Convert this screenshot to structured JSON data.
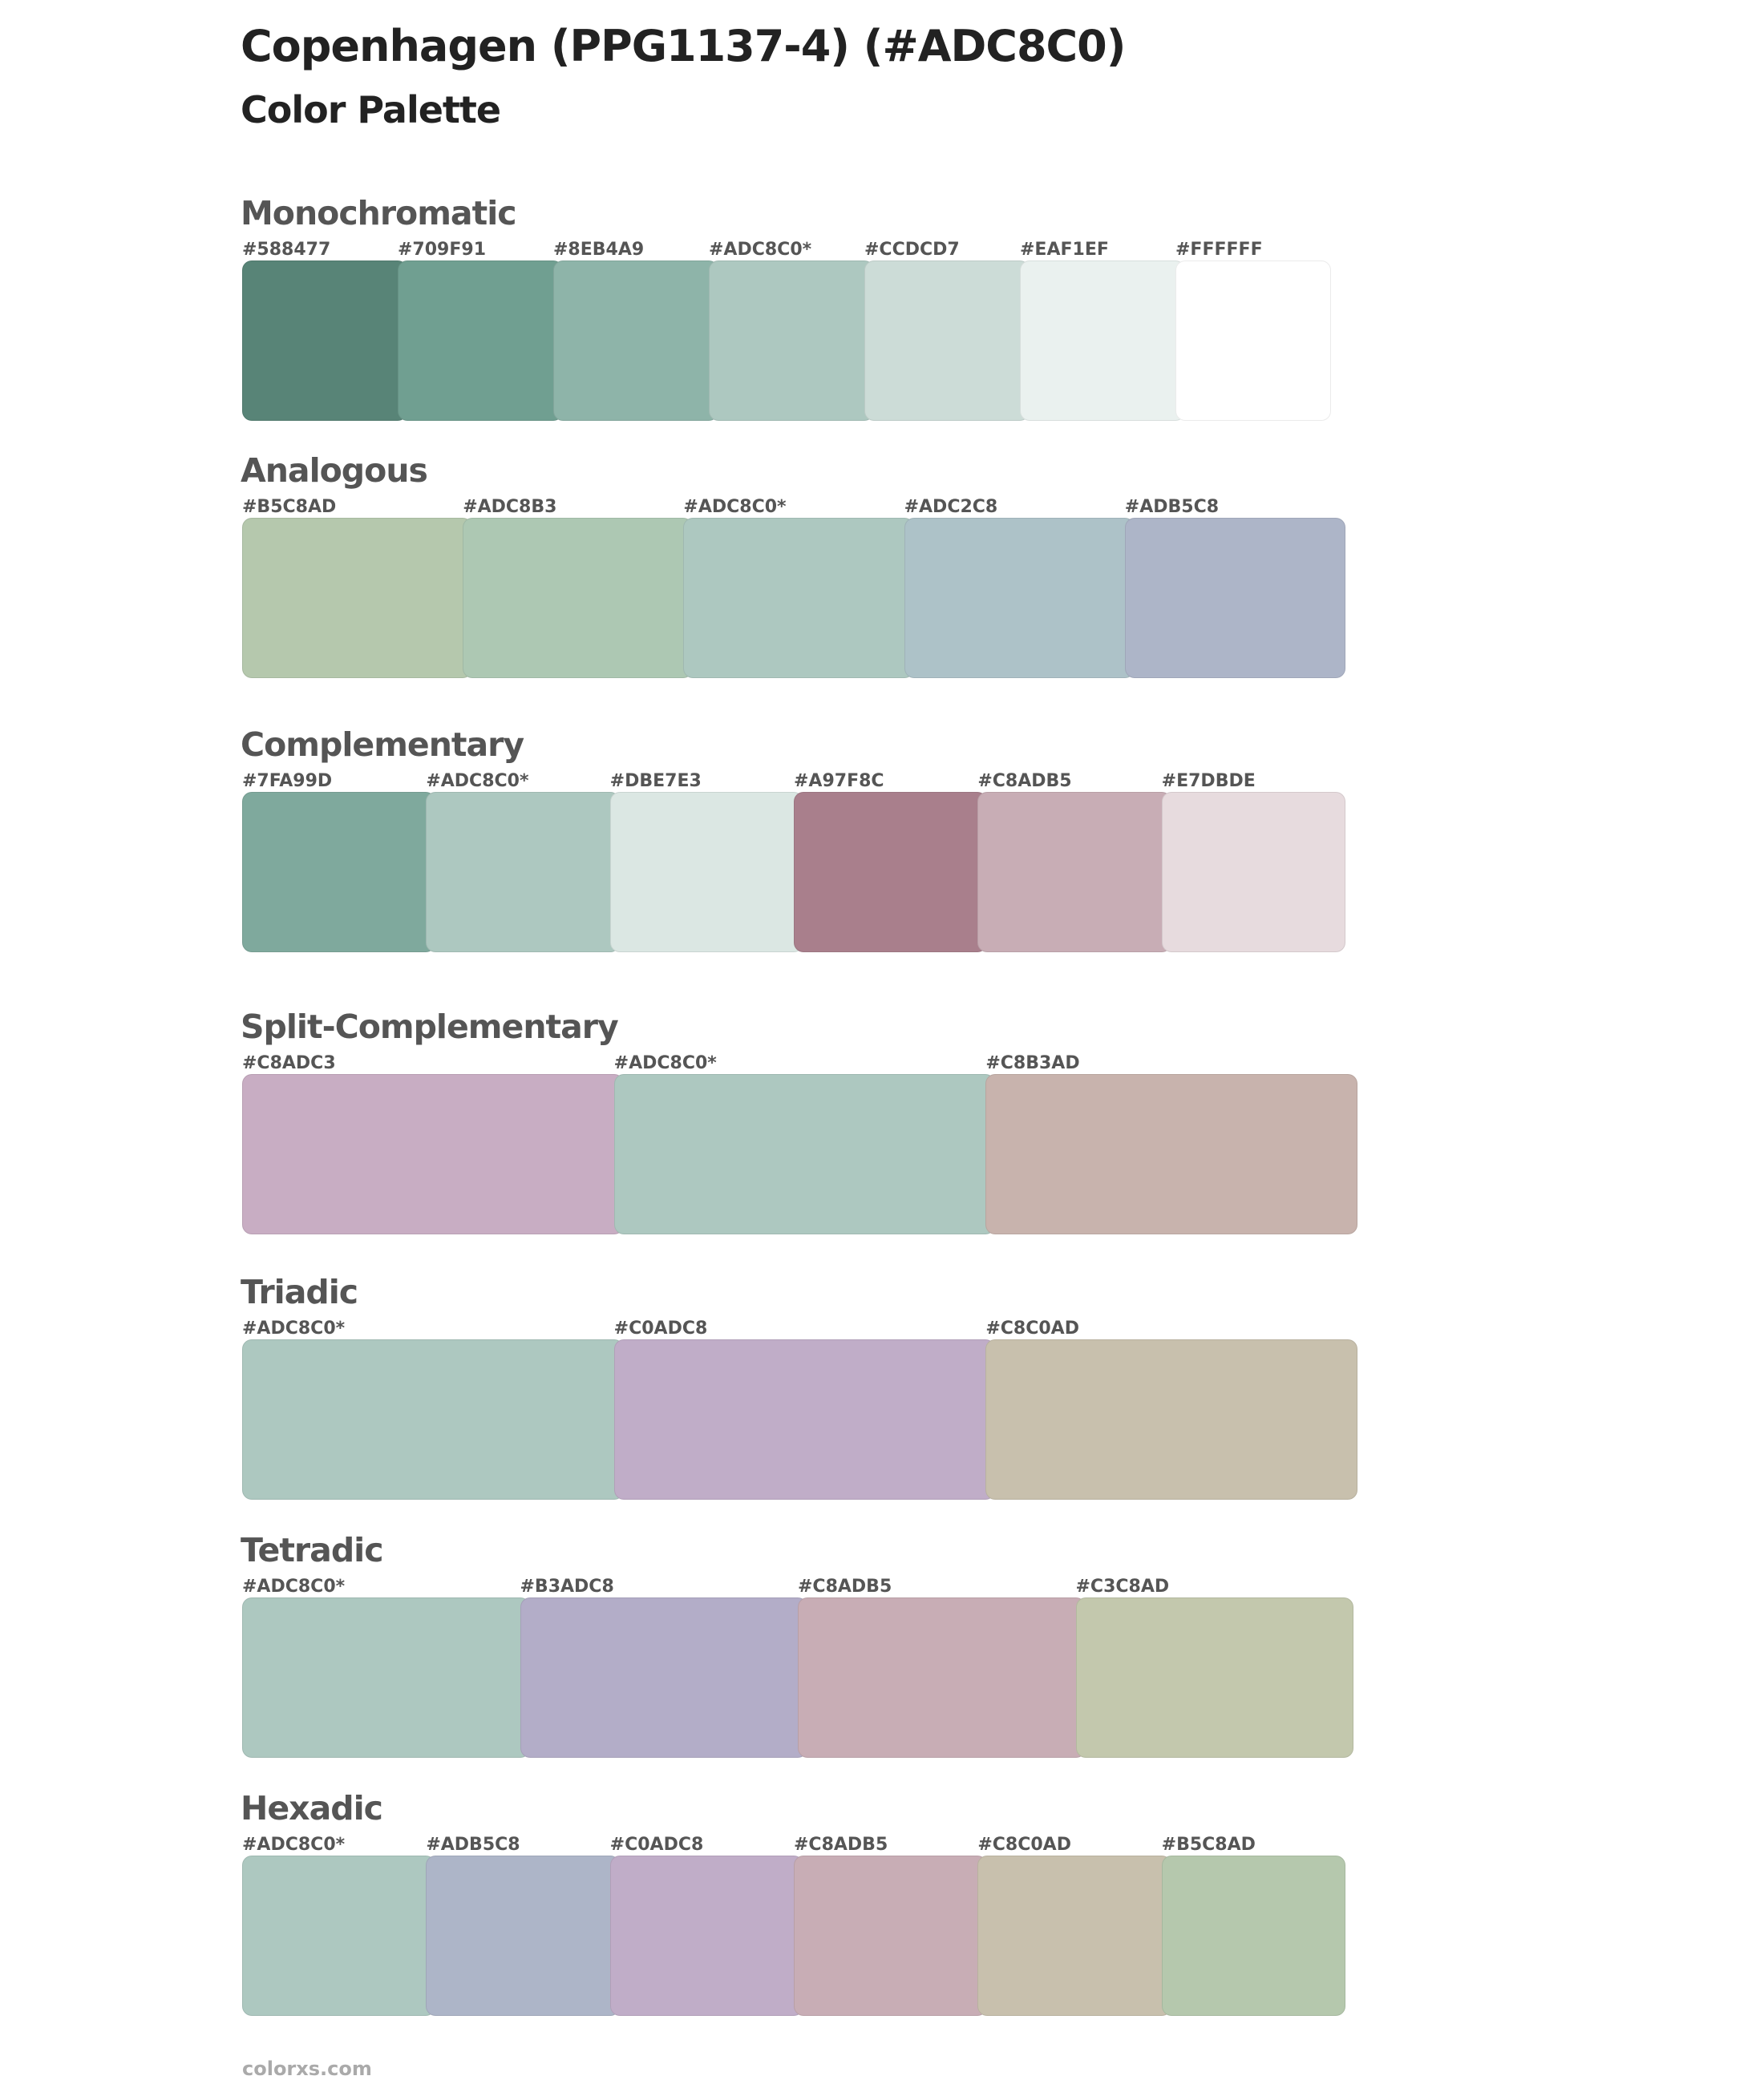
{
  "header": {
    "title": "Copenhagen (PPG1137-4) (#ADC8C0)",
    "subtitle": "Color Palette"
  },
  "sections": [
    {
      "title": "Monochromatic",
      "swatches": [
        {
          "label": "#588477",
          "color": "#588477"
        },
        {
          "label": "#709F91",
          "color": "#709F91"
        },
        {
          "label": "#8EB4A9",
          "color": "#8EB4A9"
        },
        {
          "label": "#ADC8C0*",
          "color": "#ADC8C0"
        },
        {
          "label": "#CCDCD7",
          "color": "#CCDCD7"
        },
        {
          "label": "#EAF1EF",
          "color": "#EAF1EF"
        },
        {
          "label": "#FFFFFF",
          "color": "#FFFFFF"
        }
      ]
    },
    {
      "title": "Analogous",
      "swatches": [
        {
          "label": "#B5C8AD",
          "color": "#B5C8AD"
        },
        {
          "label": "#ADC8B3",
          "color": "#ADC8B3"
        },
        {
          "label": "#ADC8C0*",
          "color": "#ADC8C0"
        },
        {
          "label": "#ADC2C8",
          "color": "#ADC2C8"
        },
        {
          "label": "#ADB5C8",
          "color": "#ADB5C8"
        }
      ]
    },
    {
      "title": "Complementary",
      "swatches": [
        {
          "label": "#7FA99D",
          "color": "#7FA99D"
        },
        {
          "label": "#ADC8C0*",
          "color": "#ADC8C0"
        },
        {
          "label": "#DBE7E3",
          "color": "#DBE7E3"
        },
        {
          "label": "#A97F8C",
          "color": "#A97F8C"
        },
        {
          "label": "#C8ADB5",
          "color": "#C8ADB5"
        },
        {
          "label": "#E7DBDE",
          "color": "#E7DBDE"
        }
      ]
    },
    {
      "title": "Split-Complementary",
      "swatches": [
        {
          "label": "#C8ADC3",
          "color": "#C8ADC3"
        },
        {
          "label": "#ADC8C0*",
          "color": "#ADC8C0"
        },
        {
          "label": "#C8B3AD",
          "color": "#C8B3AD"
        }
      ]
    },
    {
      "title": "Triadic",
      "swatches": [
        {
          "label": "#ADC8C0*",
          "color": "#ADC8C0"
        },
        {
          "label": "#C0ADC8",
          "color": "#C0ADC8"
        },
        {
          "label": "#C8C0AD",
          "color": "#C8C0AD"
        }
      ]
    },
    {
      "title": "Tetradic",
      "swatches": [
        {
          "label": "#ADC8C0*",
          "color": "#ADC8C0"
        },
        {
          "label": "#B3ADC8",
          "color": "#B3ADC8"
        },
        {
          "label": "#C8ADB5",
          "color": "#C8ADB5"
        },
        {
          "label": "#C3C8AD",
          "color": "#C3C8AD"
        }
      ]
    },
    {
      "title": "Hexadic",
      "swatches": [
        {
          "label": "#ADC8C0*",
          "color": "#ADC8C0"
        },
        {
          "label": "#ADB5C8",
          "color": "#ADB5C8"
        },
        {
          "label": "#C0ADC8",
          "color": "#C0ADC8"
        },
        {
          "label": "#C8ADB5",
          "color": "#C8ADB5"
        },
        {
          "label": "#C8C0AD",
          "color": "#C8C0AD"
        },
        {
          "label": "#B5C8AD",
          "color": "#B5C8AD"
        }
      ]
    }
  ],
  "footer": {
    "text": "colorxs.com"
  }
}
